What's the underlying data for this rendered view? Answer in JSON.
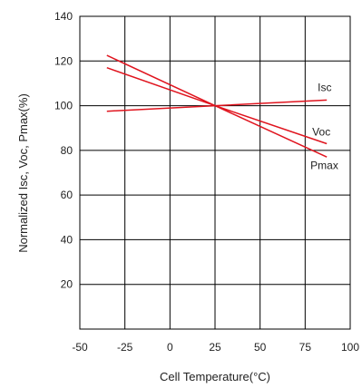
{
  "chart_data": {
    "type": "line",
    "title": "",
    "xlabel": "Cell Temperature(°C)",
    "ylabel": "Normalized Isc, Voc, Pmax(%)",
    "xlim": [
      -50,
      100
    ],
    "ylim": [
      0,
      140
    ],
    "x_ticks": [
      -50,
      -25,
      0,
      25,
      50,
      75,
      100
    ],
    "y_ticks": [
      20,
      40,
      60,
      80,
      100,
      120,
      140
    ],
    "grid": true,
    "legend": "none",
    "series_color": "#e0141e",
    "series": [
      {
        "name": "Isc",
        "x": [
          -35,
          25,
          87
        ],
        "y": [
          97.5,
          100,
          102.5
        ]
      },
      {
        "name": "Voc",
        "x": [
          -35,
          25,
          87
        ],
        "y": [
          117,
          100,
          83
        ]
      },
      {
        "name": "Pmax",
        "x": [
          -35,
          25,
          87
        ],
        "y": [
          122.5,
          100,
          77
        ]
      }
    ]
  }
}
